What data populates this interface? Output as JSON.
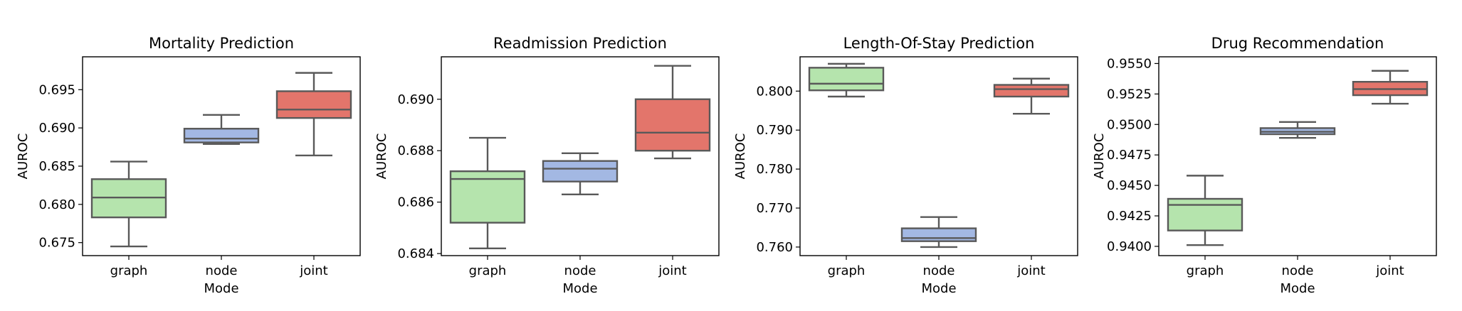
{
  "chart_data": [
    {
      "type": "box",
      "title": "Mortality Prediction",
      "xlabel": "Mode",
      "ylabel": "AUROC",
      "categories": [
        "graph",
        "node",
        "joint"
      ],
      "colors": [
        "#b5e4ad",
        "#a3b8e3",
        "#e3756b"
      ],
      "ylim": [
        0.6733,
        0.6993
      ],
      "yticks": [
        "0.675",
        "0.680",
        "0.685",
        "0.690",
        "0.695"
      ],
      "boxes": [
        {
          "min": 0.6745,
          "q1": 0.6783,
          "median": 0.6809,
          "q3": 0.6833,
          "max": 0.6856
        },
        {
          "min": 0.6879,
          "q1": 0.6881,
          "median": 0.6886,
          "q3": 0.6899,
          "max": 0.6917
        },
        {
          "min": 0.6864,
          "q1": 0.6913,
          "median": 0.6924,
          "q3": 0.6948,
          "max": 0.6972
        }
      ]
    },
    {
      "type": "box",
      "title": "Readmission Prediction",
      "xlabel": "Mode",
      "ylabel": "AUROC",
      "categories": [
        "graph",
        "node",
        "joint"
      ],
      "colors": [
        "#b5e4ad",
        "#a3b8e3",
        "#e3756b"
      ],
      "ylim": [
        0.68392,
        0.69165
      ],
      "yticks": [
        "0.684",
        "0.686",
        "0.688",
        "0.690"
      ],
      "boxes": [
        {
          "min": 0.6842,
          "q1": 0.6852,
          "median": 0.6869,
          "q3": 0.6872,
          "max": 0.6885
        },
        {
          "min": 0.6863,
          "q1": 0.6868,
          "median": 0.6873,
          "q3": 0.6876,
          "max": 0.6879
        },
        {
          "min": 0.6877,
          "q1": 0.688,
          "median": 0.6887,
          "q3": 0.69,
          "max": 0.6913
        }
      ]
    },
    {
      "type": "box",
      "title": "Length-Of-Stay Prediction",
      "xlabel": "Mode",
      "ylabel": "AUROC",
      "categories": [
        "graph",
        "node",
        "joint"
      ],
      "colors": [
        "#b5e4ad",
        "#a3b8e3",
        "#e3756b"
      ],
      "ylim": [
        0.7578,
        0.8088
      ],
      "yticks": [
        "0.760",
        "0.770",
        "0.780",
        "0.790",
        "0.800"
      ],
      "boxes": [
        {
          "min": 0.7986,
          "q1": 0.8002,
          "median": 0.8019,
          "q3": 0.806,
          "max": 0.807
        },
        {
          "min": 0.76,
          "q1": 0.7615,
          "median": 0.7623,
          "q3": 0.7648,
          "max": 0.7677
        },
        {
          "min": 0.7942,
          "q1": 0.7986,
          "median": 0.8005,
          "q3": 0.8016,
          "max": 0.8032
        }
      ]
    },
    {
      "type": "box",
      "title": "Drug Recommendation",
      "xlabel": "Mode",
      "ylabel": "AUROC",
      "categories": [
        "graph",
        "node",
        "joint"
      ],
      "colors": [
        "#b5e4ad",
        "#a3b8e3",
        "#e3756b"
      ],
      "ylim": [
        0.93924,
        0.95555
      ],
      "yticks": [
        "0.9400",
        "0.9425",
        "0.9450",
        "0.9475",
        "0.9500",
        "0.9525",
        "0.9550"
      ],
      "boxes": [
        {
          "min": 0.9401,
          "q1": 0.9413,
          "median": 0.9434,
          "q3": 0.9439,
          "max": 0.9458
        },
        {
          "min": 0.9489,
          "q1": 0.9492,
          "median": 0.9494,
          "q3": 0.9497,
          "max": 0.9502
        },
        {
          "min": 0.9517,
          "q1": 0.9524,
          "median": 0.9529,
          "q3": 0.9535,
          "max": 0.9544
        }
      ]
    }
  ]
}
